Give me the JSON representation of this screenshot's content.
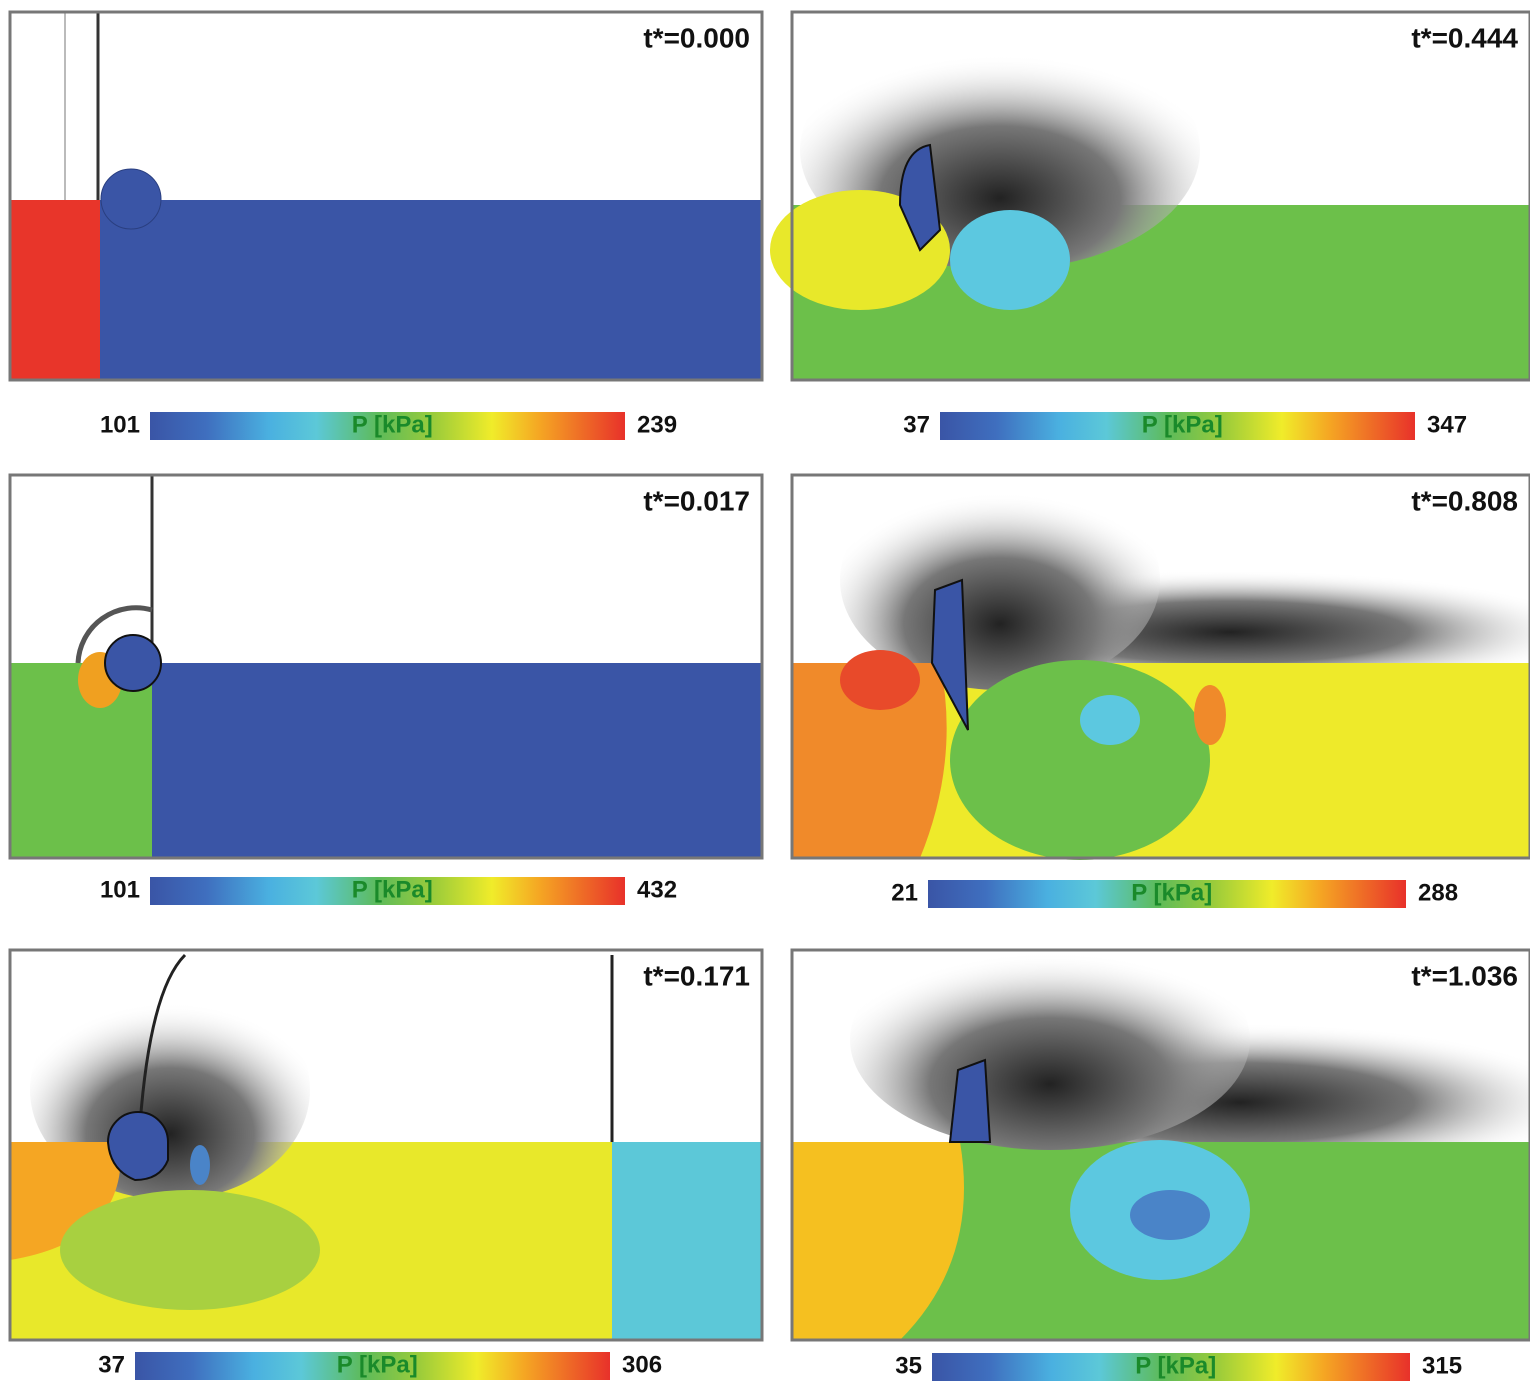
{
  "panels": [
    {
      "time": "t*=0.000",
      "colorbar": {
        "min": 101,
        "max": 239,
        "label": "P [kPa]"
      }
    },
    {
      "time": "t*=0.444",
      "colorbar": {
        "min": 37,
        "max": 347,
        "label": "P [kPa]"
      }
    },
    {
      "time": "t*=0.017",
      "colorbar": {
        "min": 101,
        "max": 432,
        "label": "P [kPa]"
      }
    },
    {
      "time": "t*=0.808",
      "colorbar": {
        "min": 21,
        "max": 288,
        "label": "P [kPa]"
      }
    },
    {
      "time": "t*=0.171",
      "colorbar": {
        "min": 37,
        "max": 306,
        "label": "P [kPa]"
      }
    },
    {
      "time": "t*=1.036",
      "colorbar": {
        "min": 35,
        "max": 315,
        "label": "P [kPa]"
      }
    }
  ]
}
